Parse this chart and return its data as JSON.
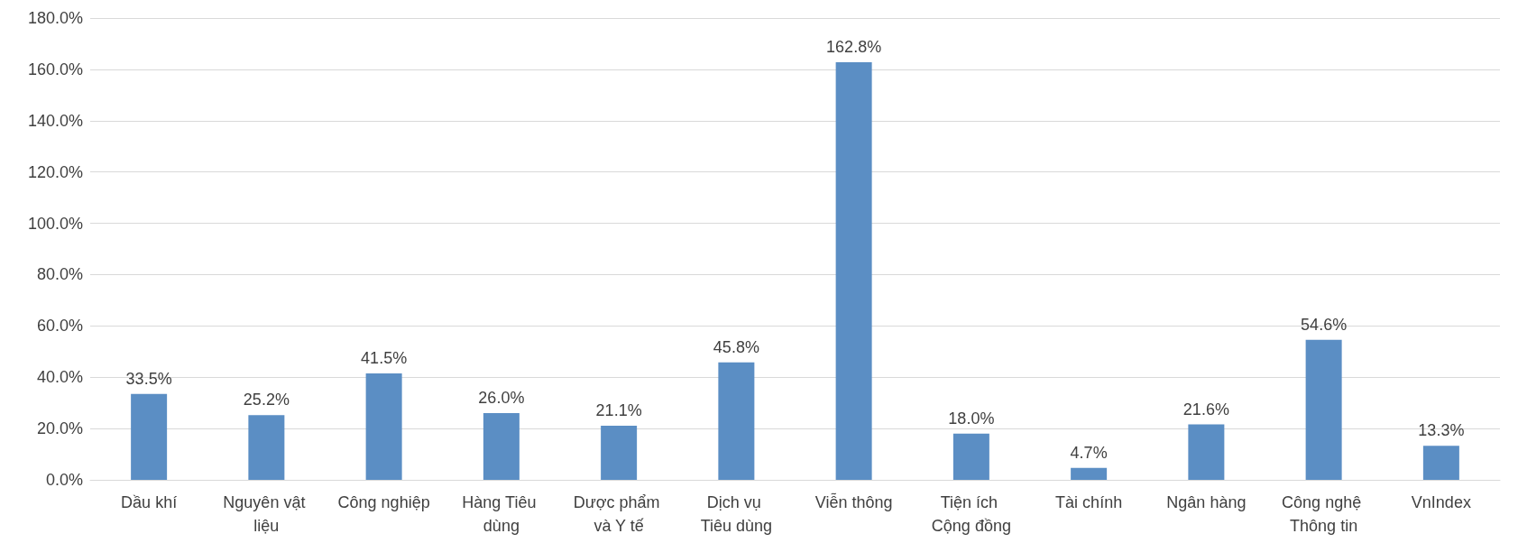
{
  "chart_data": {
    "type": "bar",
    "categories": [
      "Dầu khí",
      "Nguyên vật liệu",
      "Công nghiệp",
      "Hàng Tiêu dùng",
      "Dược phẩm và Y tế",
      "Dịch vụ Tiêu dùng",
      "Viễn thông",
      "Tiện ích Cộng đồng",
      "Tài chính",
      "Ngân hàng",
      "Công nghệ Thông tin",
      "VnIndex"
    ],
    "values": [
      33.5,
      25.2,
      41.5,
      26.0,
      21.1,
      45.8,
      162.8,
      18.0,
      4.7,
      21.6,
      54.6,
      13.3
    ],
    "value_labels": [
      "33.5%",
      "25.2%",
      "41.5%",
      "26.0%",
      "21.1%",
      "45.8%",
      "162.8%",
      "18.0%",
      "4.7%",
      "21.6%",
      "54.6%",
      "13.3%"
    ],
    "color": "#5b8ec4",
    "ylim": [
      0,
      180
    ],
    "yticks": [
      {
        "value": 0,
        "label": "0.0%"
      },
      {
        "value": 20,
        "label": "20.0%"
      },
      {
        "value": 40,
        "label": "40.0%"
      },
      {
        "value": 60,
        "label": "60.0%"
      },
      {
        "value": 80,
        "label": "80.0%"
      },
      {
        "value": 100,
        "label": "100.0%"
      },
      {
        "value": 120,
        "label": "120.0%"
      },
      {
        "value": 140,
        "label": "140.0%"
      },
      {
        "value": 160,
        "label": "160.0%"
      },
      {
        "value": 180,
        "label": "180.0%"
      }
    ],
    "grid": "y"
  }
}
